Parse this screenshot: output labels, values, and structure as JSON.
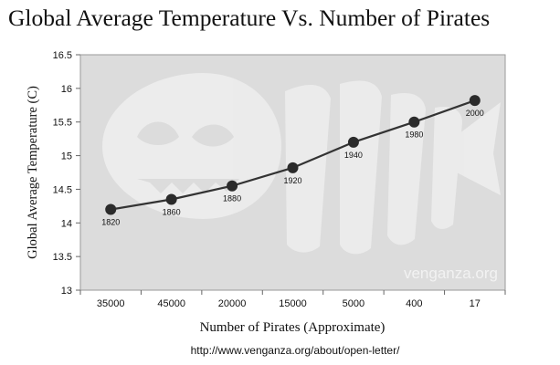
{
  "chart_data": {
    "type": "line",
    "title": "Global Average Temperature Vs. Number of Pirates",
    "xlabel": "Number of Pirates (Approximate)",
    "ylabel": "Global Average Temperature (C)",
    "categories": [
      "35000",
      "45000",
      "20000",
      "15000",
      "5000",
      "400",
      "17"
    ],
    "series": [
      {
        "name": "Global Average Temperature",
        "values": [
          14.2,
          14.35,
          14.55,
          14.82,
          15.2,
          15.5,
          15.82
        ],
        "point_labels": [
          "1820",
          "1860",
          "1880",
          "1920",
          "1940",
          "1980",
          "2000"
        ]
      }
    ],
    "ylim": [
      13,
      16.5
    ],
    "yticks": [
      "13",
      "13.5",
      "14",
      "14.5",
      "15",
      "15.5",
      "16",
      "16.5"
    ],
    "grid": false,
    "legend": "none",
    "colors": {
      "plot_bg": "#dcdcdc",
      "line": "#333333",
      "marker": "#2b2b2b",
      "watermark_shape": "#ececec",
      "watermark_text": "#f2f2f2",
      "text": "#111111"
    }
  },
  "watermark": "venganza.org",
  "source_url": "http://www.venganza.org/about/open-letter/"
}
